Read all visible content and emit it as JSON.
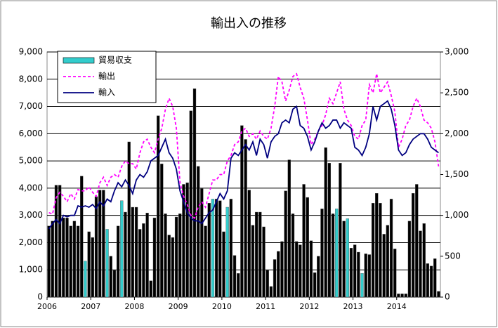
{
  "chart_data": {
    "type": "combo",
    "title": "輸出入の推移",
    "legend": "upper left",
    "grid": true,
    "categories": [
      "2006",
      null,
      null,
      null,
      null,
      null,
      null,
      null,
      null,
      null,
      null,
      null,
      "2007",
      null,
      null,
      null,
      null,
      null,
      null,
      null,
      null,
      null,
      null,
      null,
      "2008",
      null,
      null,
      null,
      null,
      null,
      null,
      null,
      null,
      null,
      null,
      null,
      "2009",
      null,
      null,
      null,
      null,
      null,
      null,
      null,
      null,
      null,
      null,
      null,
      "2010",
      null,
      null,
      null,
      null,
      null,
      null,
      null,
      null,
      null,
      null,
      null,
      "2011",
      null,
      null,
      null,
      null,
      null,
      null,
      null,
      null,
      null,
      null,
      null,
      "2012",
      null,
      null,
      null,
      null,
      null,
      null,
      null,
      null,
      null,
      null,
      null,
      "2013",
      null,
      null,
      null,
      null,
      null,
      null,
      null,
      null,
      null,
      null,
      null,
      "2014",
      null,
      null,
      null,
      null,
      null,
      null,
      null,
      null,
      null,
      null,
      null
    ],
    "ylim": [
      0,
      9000
    ],
    "yticks": [
      0,
      {
        "value": 1000,
        "label": "1,000"
      },
      {
        "value": 2000,
        "label": "2,000"
      },
      {
        "value": 3000,
        "label": "3,000"
      },
      {
        "value": 4000,
        "label": "4,000"
      },
      {
        "value": 5000,
        "label": "5,000"
      },
      {
        "value": 6000,
        "label": "6,000"
      },
      {
        "value": 7000,
        "label": "7,000"
      },
      {
        "value": 8000,
        "label": "8,000"
      },
      {
        "value": 9000,
        "label": "9,000"
      }
    ],
    "y2lim": [
      0,
      3000
    ],
    "y2ticks": [
      0,
      500,
      {
        "value": 1000,
        "label": "1,000"
      },
      {
        "value": 1500,
        "label": "1,500"
      },
      {
        "value": 2000,
        "label": "2,000"
      },
      {
        "value": 2500,
        "label": "2,500"
      },
      {
        "value": 3000,
        "label": "3,000"
      }
    ],
    "series": [
      {
        "name": "貿易収支",
        "axis": "y2",
        "color": "#33cccc",
        "values": [
          870,
          930,
          1370,
          1370,
          970,
          970,
          870,
          930,
          870,
          1480,
          440,
          800,
          730,
          1230,
          1310,
          1310,
          830,
          500,
          330,
          870,
          1180,
          1040,
          1900,
          1100,
          1100,
          830,
          900,
          1030,
          200,
          970,
          2220,
          1630,
          1020,
          760,
          730,
          980,
          1020,
          1380,
          1400,
          2280,
          2550,
          1600,
          1330,
          870,
          1150,
          1200,
          1200,
          1180,
          800,
          1100,
          1200,
          510,
          290,
          2100,
          1930,
          1310,
          880,
          1040,
          1040,
          860,
          330,
          130,
          460,
          560,
          680,
          1300,
          1680,
          1020,
          680,
          640,
          1380,
          1220,
          690,
          300,
          500,
          1080,
          1830,
          1640,
          1020,
          1080,
          1640,
          930,
          960,
          600,
          640,
          550,
          290,
          530,
          520,
          1150,
          1270,
          1150,
          770,
          880,
          1200,
          590,
          40,
          40,
          40,
          930,
          1270,
          1380,
          810,
          900,
          410,
          380,
          470,
          70
        ],
        "colors": [
          "#000000",
          "#000000",
          "#000000",
          "#000000",
          "#000000",
          "#000000",
          "#000000",
          "#000000",
          "#000000",
          "#000000",
          "#33cccc",
          "#000000",
          "#000000",
          "#000000",
          "#000000",
          "#000000",
          "#33cccc",
          "#000000",
          "#000000",
          "#000000",
          "#33cccc",
          "#000000",
          "#000000",
          "#000000",
          "#000000",
          "#000000",
          "#000000",
          "#000000",
          "#000000",
          "#000000",
          "#000000",
          "#000000",
          "#000000",
          "#000000",
          "#000000",
          "#000000",
          "#000000",
          "#000000",
          "#000000",
          "#000000",
          "#000000",
          "#000000",
          "#000000",
          "#000000",
          "#000000",
          "#33cccc",
          "#000000",
          "#000000",
          "#000000",
          "#33cccc",
          "#000000",
          "#000000",
          "#000000",
          "#000000",
          "#000000",
          "#000000",
          "#000000",
          "#000000",
          "#000000",
          "#000000",
          "#000000",
          "#000000",
          "#000000",
          "#000000",
          "#000000",
          "#000000",
          "#000000",
          "#000000",
          "#000000",
          "#000000",
          "#000000",
          "#000000",
          "#000000",
          "#000000",
          "#000000",
          "#000000",
          "#000000",
          "#000000",
          "#000000",
          "#33cccc",
          "#000000",
          "#000000",
          "#33cccc",
          "#000000",
          "#000000",
          "#000000",
          "#33cccc",
          "#000000",
          "#000000",
          "#000000",
          "#000000",
          "#000000",
          "#000000",
          "#000000",
          "#000000",
          "#000000",
          "#000000",
          "#000000",
          "#000000",
          "#000000",
          "#000000",
          "#000000",
          "#000000",
          "#000000",
          "#000000",
          "#000000",
          "#000000",
          "#000000"
        ]
      },
      {
        "name": "輸出",
        "color": "#ff00ff",
        "style": "dashed",
        "values": [
          3100,
          3050,
          3650,
          3850,
          3700,
          3500,
          3800,
          3600,
          3950,
          3900,
          3900,
          4050,
          3850,
          3700,
          4200,
          4400,
          4100,
          4400,
          4500,
          4400,
          4800,
          5000,
          4900,
          4900,
          4700,
          5300,
          5700,
          5800,
          5500,
          5300,
          5800,
          6200,
          6900,
          7300,
          7000,
          6200,
          4200,
          3700,
          3400,
          3000,
          2900,
          3300,
          3500,
          3300,
          3800,
          4300,
          4300,
          4500,
          4500,
          5000,
          5200,
          5600,
          5700,
          6100,
          6200,
          5900,
          6000,
          5800,
          6100,
          5900,
          5800,
          6200,
          7000,
          8100,
          7900,
          7200,
          7600,
          8100,
          8200,
          7700,
          7300,
          6500,
          5600,
          5800,
          6100,
          6300,
          6700,
          7300,
          7100,
          7500,
          7900,
          6900,
          6500,
          6300,
          5900,
          5800,
          6300,
          6500,
          7800,
          7500,
          8200,
          7500,
          7700,
          7900,
          7400,
          6800,
          5500,
          5800,
          6300,
          6500,
          7000,
          7300,
          7000,
          6500,
          6400,
          6200,
          5700,
          4800
        ]
      },
      {
        "name": "輸入",
        "color": "#000080",
        "style": "solid",
        "values": [
          2500,
          2700,
          2850,
          2700,
          3000,
          2950,
          3000,
          3000,
          3350,
          3300,
          3350,
          3300,
          3400,
          3250,
          3500,
          3350,
          3600,
          3500,
          3900,
          4200,
          4050,
          4300,
          4100,
          3800,
          4300,
          4500,
          4400,
          4600,
          5000,
          5100,
          5200,
          5500,
          5800,
          5300,
          5100,
          4700,
          3900,
          3500,
          3100,
          2900,
          2800,
          2800,
          2700,
          2900,
          3100,
          3200,
          3500,
          3800,
          3600,
          3900,
          5100,
          5300,
          5200,
          5400,
          5600,
          5400,
          5700,
          5200,
          5800,
          5600,
          5100,
          5700,
          5900,
          6000,
          6400,
          6500,
          6400,
          6900,
          7000,
          6300,
          6200,
          5900,
          5400,
          5700,
          6100,
          6400,
          6200,
          6300,
          6500,
          6500,
          6200,
          6400,
          6300,
          6200,
          5500,
          5400,
          5200,
          5500,
          6000,
          7000,
          6500,
          7000,
          7100,
          7200,
          6900,
          6300,
          5400,
          5200,
          5300,
          5600,
          5800,
          5900,
          6000,
          6000,
          5800,
          5500,
          5400,
          5300
        ]
      }
    ]
  }
}
